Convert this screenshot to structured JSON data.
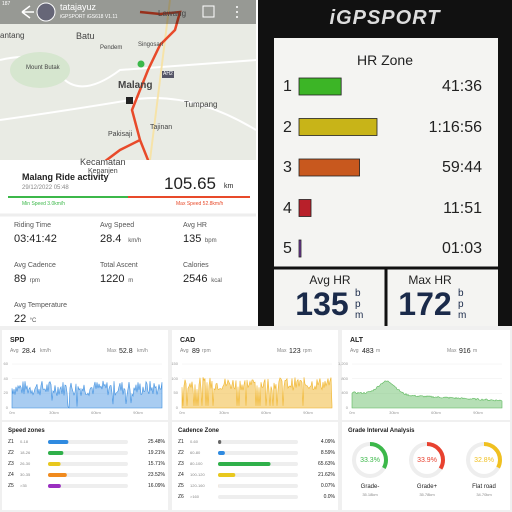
{
  "map_app": {
    "status": "187",
    "user": "tatajayuz",
    "device": "iGPSPORT iGS618  V1.11",
    "places": [
      "Lawang",
      "antang",
      "Batu",
      "Pendem",
      "Singosari",
      "Mount Butak",
      "Malang",
      "AH2",
      "Tumpang",
      "Tajinan",
      "Pakisaji",
      "Kecamatan",
      "Kepanjen"
    ],
    "activity": {
      "title": "Malang Ride activity",
      "date": "29/12/2022 05:48",
      "distance": "105.65",
      "distance_unit": "km",
      "min_speed": "Min Speed 3.0km/h",
      "max_speed": "Max Speed 52.8km/h"
    },
    "stats": [
      {
        "label": "Riding Time",
        "value": "03:41:42"
      },
      {
        "label": "Avg Speed",
        "value": "28.4",
        "unit": "km/h"
      },
      {
        "label": "Avg HR",
        "value": "135",
        "unit": "bpm"
      },
      {
        "label": "Avg Cadence",
        "value": "89",
        "unit": "rpm"
      },
      {
        "label": "Total Ascent",
        "value": "1220",
        "unit": "m"
      },
      {
        "label": "Calories",
        "value": "2546",
        "unit": "kcal"
      },
      {
        "label": "Avg Temperature",
        "value": "22",
        "unit": "°C"
      }
    ]
  },
  "device": {
    "brand": "iGPSPORT",
    "title": "HR Zone",
    "zones": [
      {
        "zone": "1",
        "time": "41:36",
        "color": "#3cb526"
      },
      {
        "zone": "2",
        "time": "1:16:56",
        "color": "#c8b418"
      },
      {
        "zone": "3",
        "time": "59:44",
        "color": "#c8581e"
      },
      {
        "zone": "4",
        "time": "11:51",
        "color": "#b8202a"
      },
      {
        "zone": "5",
        "time": "01:03",
        "color": "#7a3aa8"
      }
    ],
    "avg_label": "Avg HR",
    "avg": "135",
    "max_label": "Max HR",
    "max": "172",
    "unit": "bpm"
  },
  "charts": [
    {
      "title": "SPD",
      "avg_label": "Avg",
      "avg": "28.4",
      "max_label": "Max",
      "max": "52.8",
      "unit": "km/h",
      "color": "#3d8fe0",
      "yticks": [
        "60",
        "40",
        "20",
        "0"
      ],
      "xticks": [
        "0m",
        "30km",
        "60km",
        "90km"
      ]
    },
    {
      "title": "CAD",
      "avg_label": "Avg",
      "avg": "89",
      "max_label": "Max",
      "max": "123",
      "unit": "rpm",
      "color": "#f0b429",
      "yticks": [
        "150",
        "100",
        "50",
        "0"
      ],
      "xticks": [
        "0m",
        "30km",
        "60km",
        "90km"
      ]
    },
    {
      "title": "ALT",
      "avg_label": "Avg",
      "avg": "483",
      "max_label": "Max",
      "max": "916",
      "unit": "m",
      "color": "#5cb85c",
      "yticks": [
        "1,200",
        "800",
        "400",
        "0"
      ],
      "xticks": [
        "0m",
        "30km",
        "60km",
        "90km"
      ]
    }
  ],
  "speed_zones": {
    "title": "Speed zones",
    "rows": [
      {
        "zone": "Z1",
        "range": "0-18",
        "percent": "25.48%",
        "color": "#2f8ae0"
      },
      {
        "zone": "Z2",
        "range": "18-26",
        "percent": "19.21%",
        "color": "#2fb04a"
      },
      {
        "zone": "Z3",
        "range": "26-30",
        "percent": "15.71%",
        "color": "#e8c81e"
      },
      {
        "zone": "Z4",
        "range": "30-35",
        "percent": "23.52%",
        "color": "#f08a1e"
      },
      {
        "zone": "Z5",
        "range": ">35",
        "percent": "16.09%",
        "color": "#9a2fc0"
      }
    ]
  },
  "cadence_zone": {
    "title": "Cadence Zone",
    "rows": [
      {
        "zone": "Z1",
        "range": "0-60",
        "percent": "4.09%",
        "color": "#666666"
      },
      {
        "zone": "Z2",
        "range": "60-80",
        "percent": "8.59%",
        "color": "#2f8ae0"
      },
      {
        "zone": "Z3",
        "range": "80-100",
        "percent": "65.63%",
        "color": "#2fb04a"
      },
      {
        "zone": "Z4",
        "range": "100-120",
        "percent": "21.62%",
        "color": "#e8c81e"
      },
      {
        "zone": "Z5",
        "range": "120-160",
        "percent": "0.07%",
        "color": "#f08a1e"
      },
      {
        "zone": "Z6",
        "range": ">160",
        "percent": "0.0%",
        "color": "#d0302f"
      }
    ]
  },
  "grade": {
    "title": "Grade Interval Analysis",
    "items": [
      {
        "percent": "33.3%",
        "label": "Grade-",
        "distance": "35.18km",
        "color": "#3cb84a"
      },
      {
        "percent": "33.9%",
        "label": "Grade+",
        "distance": "35.78km",
        "color": "#e8412f"
      },
      {
        "percent": "32.8%",
        "label": "Flat road",
        "distance": "34.70km",
        "color": "#f0c020"
      }
    ]
  }
}
